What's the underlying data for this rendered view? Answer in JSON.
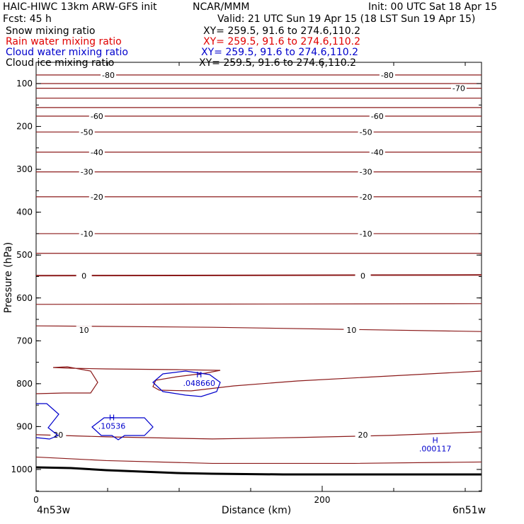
{
  "header": {
    "line1_left": "HAIC-HIWC 13km ARW-GFS init",
    "line1_mid": "NCAR/MMM",
    "line1_right": "Init: 00 UTC Sat 18 Apr 15",
    "line2_left": "Fcst:    45 h",
    "line2_right": "Valid: 21 UTC Sun 19 Apr 15 (18 LST Sun 19 Apr 15)"
  },
  "fields": [
    {
      "name": "Snow mixing ratio",
      "xy": "XY= 259.5, 91.6 to 274.6,110.2",
      "color": "#000000"
    },
    {
      "name": "Rain water mixing ratio",
      "xy": "XY= 259.5, 91.6 to 274.6,110.2",
      "color": "#e00000"
    },
    {
      "name": "Cloud water mixing ratio",
      "xy": "XY= 259.5, 91.6 to 274.6,110.2",
      "color": "#0000cc"
    },
    {
      "name": "Cloud ice mixing ratio",
      "xy": "XY= 259.5, 91.6 to 274.6,110.2",
      "color": "#000000"
    }
  ],
  "colors": {
    "temperature": "#8b1a1a",
    "cloud_water": "#0000cc",
    "terrain": "#000000"
  },
  "chart_data": {
    "type": "contour",
    "ylabel": "Pressure (hPa)",
    "xlabel": "Distance (km)",
    "yticks": [
      100,
      200,
      300,
      400,
      500,
      600,
      700,
      800,
      900,
      1000
    ],
    "xticks": [
      0,
      200
    ],
    "x_range": [
      0,
      310
    ],
    "y_range": [
      1050,
      75
    ],
    "x_endpoints": {
      "left": "4n53w",
      "right": "6n51w"
    },
    "temperature_contours": [
      {
        "p": 80,
        "label": "-80",
        "lx": [
          50,
          245
        ]
      },
      {
        "p": 100,
        "label": "",
        "lx": []
      },
      {
        "p": 111,
        "label": "-70",
        "lx": [
          295
        ]
      },
      {
        "p": 134,
        "label": "",
        "lx": []
      },
      {
        "p": 156,
        "label": "",
        "lx": []
      },
      {
        "p": 176,
        "label": "-60",
        "lx": [
          42,
          238
        ]
      },
      {
        "p": 213,
        "label": "-50",
        "lx": [
          35,
          230
        ]
      },
      {
        "p": 260,
        "label": "-40",
        "lx": [
          42,
          238
        ]
      },
      {
        "p": 306,
        "label": "-30",
        "lx": [
          35,
          230
        ]
      },
      {
        "p": 364,
        "label": "-20",
        "lx": [
          42,
          230
        ]
      },
      {
        "p": 450,
        "label": "-10",
        "lx": [
          35,
          230
        ]
      },
      {
        "p": 496,
        "label": "",
        "lx": []
      },
      {
        "p": 548,
        "label": "0",
        "lx": [
          33,
          228
        ]
      },
      {
        "p": 615,
        "label": "",
        "lx": []
      },
      {
        "p": 675,
        "label": "10",
        "lx": [
          33,
          220
        ]
      },
      {
        "p": 919,
        "label": "20",
        "lx": [
          15,
          228
        ]
      },
      {
        "p": 976,
        "label": "",
        "lx": []
      }
    ],
    "cloud_water_maxima": [
      {
        "label": "H",
        "value": ".048660",
        "x": 114,
        "p": 795
      },
      {
        "label": "H",
        "value": ".10536",
        "x": 53,
        "p": 895
      },
      {
        "label": "H",
        "value": ".000117",
        "x": 279,
        "p": 948
      }
    ]
  }
}
